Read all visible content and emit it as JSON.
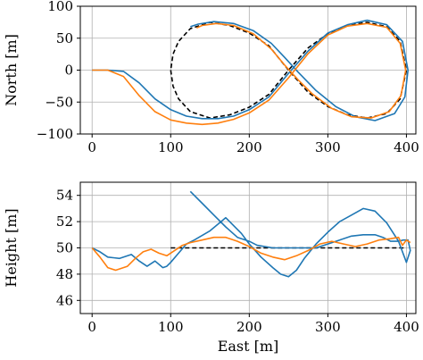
{
  "chart_data": [
    {
      "type": "line",
      "xlabel": "",
      "ylabel": "North [m]",
      "xlim": [
        -15,
        412
      ],
      "ylim": [
        -100,
        100
      ],
      "xticks": [
        "0",
        "100",
        "200",
        "300",
        "400"
      ],
      "yticks": [
        "100",
        "50",
        "0",
        "−50",
        "−100"
      ],
      "grid": true,
      "series": [
        {
          "color": "#000000",
          "style": "dashed",
          "x": [
            100,
            103,
            110,
            125,
            150,
            175,
            200,
            225,
            250,
            275,
            300,
            325,
            350,
            375,
            392,
            400,
            392,
            375,
            350,
            325,
            300,
            275,
            250,
            225,
            200,
            175,
            150,
            125,
            110,
            103,
            100
          ],
          "y": [
            0,
            -25,
            -45,
            -65,
            -75,
            -70,
            -58,
            -38,
            0,
            35,
            57,
            70,
            75,
            68,
            45,
            0,
            -45,
            -68,
            -75,
            -70,
            -57,
            -35,
            0,
            38,
            58,
            70,
            75,
            65,
            45,
            25,
            0
          ]
        },
        {
          "color": "#1f77b4",
          "style": "solid",
          "x": [
            0,
            20,
            40,
            60,
            80,
            100,
            120,
            140,
            160,
            180,
            200,
            225,
            250,
            275,
            300,
            325,
            350,
            375,
            395,
            402,
            398,
            385,
            360,
            335,
            310,
            285,
            262,
            245,
            228,
            205,
            180,
            155,
            135,
            125
          ],
          "y": [
            0,
            0,
            -2,
            -20,
            -45,
            -62,
            -72,
            -76,
            -76,
            -72,
            -62,
            -42,
            -5,
            30,
            58,
            71,
            78,
            71,
            45,
            0,
            -42,
            -68,
            -79,
            -73,
            -57,
            -32,
            -3,
            20,
            42,
            62,
            73,
            76,
            72,
            68
          ]
        },
        {
          "color": "#ff7f0e",
          "style": "solid",
          "x": [
            0,
            20,
            40,
            60,
            80,
            100,
            120,
            140,
            160,
            180,
            200,
            225,
            250,
            275,
            300,
            325,
            350,
            375,
            392,
            399,
            393,
            378,
            355,
            330,
            305,
            280,
            262,
            245,
            228,
            205,
            180,
            158,
            140,
            133
          ],
          "y": [
            0,
            0,
            -10,
            -40,
            -65,
            -78,
            -83,
            -85,
            -83,
            -77,
            -67,
            -47,
            -12,
            26,
            55,
            69,
            73,
            67,
            42,
            0,
            -40,
            -65,
            -75,
            -73,
            -60,
            -37,
            -15,
            8,
            33,
            57,
            70,
            73,
            70,
            66
          ]
        }
      ]
    },
    {
      "type": "line",
      "xlabel": "East [m]",
      "ylabel": "Height [m]",
      "xlim": [
        -15,
        412
      ],
      "ylim": [
        45,
        55
      ],
      "xticks": [
        "0",
        "100",
        "200",
        "300",
        "400"
      ],
      "yticks": [
        "54",
        "52",
        "50",
        "48",
        "46"
      ],
      "grid": true,
      "series": [
        {
          "color": "#000000",
          "style": "dashed",
          "x": [
            100,
            400
          ],
          "y": [
            50,
            50
          ]
        },
        {
          "color": "#1f77b4",
          "style": "solid",
          "x": [
            0,
            10,
            20,
            35,
            50,
            60,
            70,
            80,
            90,
            95,
            100,
            110,
            120,
            130,
            150,
            170,
            190,
            200,
            215,
            230,
            240,
            250,
            260,
            270,
            285,
            300,
            315,
            330,
            345,
            360,
            375,
            390,
            400,
            405,
            402,
            396,
            390,
            380,
            370,
            360,
            345,
            330,
            315,
            300,
            285,
            270,
            250,
            230,
            210,
            200,
            185,
            170,
            155,
            140,
            125
          ],
          "y": [
            50,
            49.7,
            49.3,
            49.2,
            49.5,
            49.0,
            48.6,
            49.0,
            48.5,
            48.6,
            48.9,
            49.6,
            50.3,
            50.6,
            51.3,
            52.3,
            51.1,
            50.3,
            49.3,
            48.5,
            48.0,
            47.8,
            48.3,
            49.2,
            50.3,
            51.2,
            52.0,
            52.5,
            53.0,
            52.8,
            51.9,
            50.5,
            48.9,
            49.8,
            50.6,
            50.6,
            50.5,
            50.5,
            50.8,
            51.0,
            51.0,
            50.9,
            50.6,
            50.3,
            50.0,
            50.0,
            50.0,
            50.0,
            50.2,
            50.5,
            50.8,
            51.6,
            52.5,
            53.4,
            54.3
          ]
        },
        {
          "color": "#ff7f0e",
          "style": "solid",
          "x": [
            0,
            10,
            20,
            30,
            45,
            55,
            65,
            75,
            85,
            95,
            105,
            115,
            125,
            140,
            155,
            170,
            185,
            200,
            215,
            230,
            245,
            260,
            275,
            290,
            305,
            320,
            335,
            350,
            365,
            380,
            390,
            395,
            400,
            405
          ],
          "y": [
            50,
            49.3,
            48.5,
            48.3,
            48.6,
            49.2,
            49.7,
            49.9,
            49.6,
            49.4,
            49.8,
            50.2,
            50.4,
            50.6,
            50.8,
            50.8,
            50.5,
            50.1,
            49.6,
            49.3,
            49.1,
            49.4,
            49.8,
            50.3,
            50.5,
            50.3,
            50.1,
            50.3,
            50.6,
            50.7,
            50.8,
            50.2,
            50.6,
            50.4
          ]
        }
      ]
    }
  ]
}
